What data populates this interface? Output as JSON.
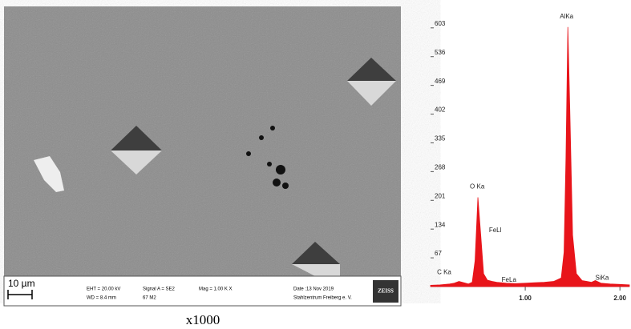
{
  "sem_image": {
    "scale_bar": "10 µm",
    "eht": "EHT = 20.00 kV",
    "wd": "WD = 8.4 mm",
    "signal": "Signal A = SE2",
    "detector": "67 M2",
    "mag": "Mag = 1.00 K X",
    "date": "Date :13 Nov 2019",
    "lab": "Stahlzentrum Freiberg e. V.",
    "brand": "ZEISS",
    "caption": "x1000"
  },
  "chart_data": {
    "type": "area",
    "color": "#e8141a",
    "x": [
      0.0,
      0.1,
      0.2,
      0.25,
      0.3,
      0.35,
      0.4,
      0.44,
      0.47,
      0.5,
      0.53,
      0.56,
      0.6,
      0.65,
      0.7,
      0.8,
      0.9,
      1.0,
      1.1,
      1.2,
      1.3,
      1.38,
      1.41,
      1.43,
      1.45,
      1.47,
      1.5,
      1.54,
      1.6,
      1.65,
      1.7,
      1.74,
      1.8,
      1.9,
      2.0,
      2.1
    ],
    "values": [
      3,
      4,
      6,
      8,
      12,
      9,
      6,
      10,
      60,
      208,
      120,
      30,
      15,
      12,
      10,
      8,
      7,
      8,
      9,
      10,
      12,
      20,
      80,
      300,
      605,
      420,
      120,
      30,
      14,
      12,
      10,
      14,
      8,
      6,
      5,
      4
    ],
    "xlim": [
      0,
      2.1
    ],
    "ylim": [
      0,
      640
    ],
    "xticks": [
      {
        "value": 1,
        "label": "1.00"
      },
      {
        "value": 2,
        "label": "2.00"
      }
    ],
    "yticks": [
      67,
      134,
      201,
      268,
      335,
      402,
      469,
      536,
      603
    ],
    "annotations": [
      {
        "text": "C Ka",
        "x": 0.28
      },
      {
        "text": "O Ka",
        "x": 0.5
      },
      {
        "text": "FeLl",
        "x": 0.6
      },
      {
        "text": "FeLa",
        "x": 0.7
      },
      {
        "text": "AlKa",
        "x": 1.45
      },
      {
        "text": "SiKa",
        "x": 1.74
      }
    ]
  }
}
